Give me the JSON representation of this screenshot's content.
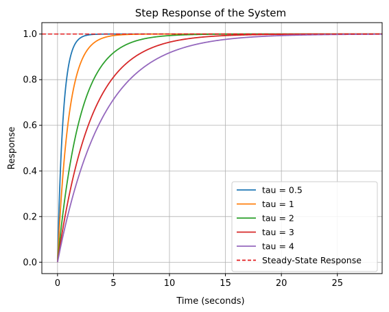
{
  "chart_data": {
    "type": "line",
    "title": "Step Response of the System",
    "xlabel": "Time (seconds)",
    "ylabel": "Response",
    "xlim": [
      -1.4,
      29
    ],
    "ylim": [
      -0.05,
      1.05
    ],
    "xticks": [
      0,
      5,
      10,
      15,
      20,
      25
    ],
    "yticks": [
      0.0,
      0.2,
      0.4,
      0.6,
      0.8,
      1.0
    ],
    "xtick_labels": [
      "0",
      "5",
      "10",
      "15",
      "20",
      "25"
    ],
    "ytick_labels": [
      "0.0",
      "0.2",
      "0.4",
      "0.6",
      "0.8",
      "1.0"
    ],
    "grid": true,
    "legend_position": "lower-right",
    "x_range": [
      0,
      29
    ],
    "series": [
      {
        "name": "tau = 0.5",
        "tau": 0.5,
        "color": "#1f77b4",
        "style": "solid"
      },
      {
        "name": "tau = 1",
        "tau": 1,
        "color": "#ff7f0e",
        "style": "solid"
      },
      {
        "name": "tau = 2",
        "tau": 2,
        "color": "#2ca02c",
        "style": "solid"
      },
      {
        "name": "tau = 3",
        "tau": 3,
        "color": "#d62728",
        "style": "solid"
      },
      {
        "name": "tau = 4",
        "tau": 4,
        "color": "#9467bd",
        "style": "solid"
      }
    ],
    "reference_line": {
      "name": "Steady-State Response",
      "y": 1.0,
      "color": "#e31a1c",
      "style": "dashed"
    }
  }
}
